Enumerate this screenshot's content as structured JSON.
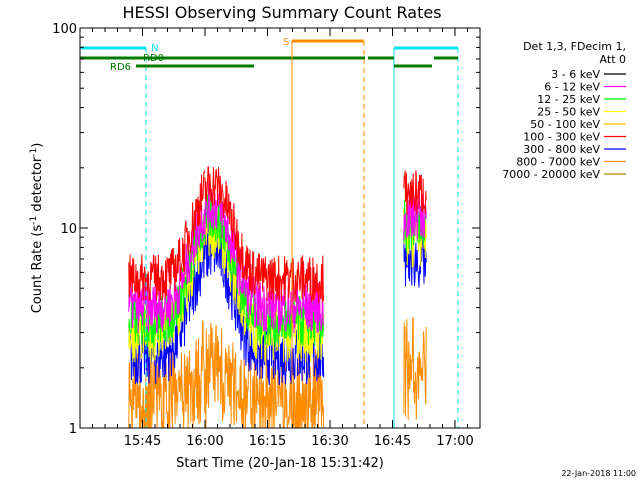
{
  "chart_data": {
    "type": "line",
    "title": "HESSI Observing Summary Count Rates",
    "xlabel": "Start Time (20-Jan-18 15:31:42)",
    "ylabel": "Count Rate (s",
    "ylabel_sup": "-1",
    "ylabel_tail": " detector",
    "ylabel_sup2": "-1",
    "ylabel_close": ")",
    "yscale": "log",
    "ylim": [
      1,
      100
    ],
    "xlim_minutes": [
      15.5,
      17.1
    ],
    "y_ticks": [
      {
        "value": 1,
        "label": "1"
      },
      {
        "value": 10,
        "label": "10"
      },
      {
        "value": 100,
        "label": "100"
      }
    ],
    "x_ticks": [
      {
        "minute": 15.75,
        "label": "15:45"
      },
      {
        "minute": 16.0,
        "label": "16:00"
      },
      {
        "minute": 16.25,
        "label": "16:15"
      },
      {
        "minute": 16.5,
        "label": "16:30"
      },
      {
        "minute": 16.75,
        "label": "16:45"
      },
      {
        "minute": 17.0,
        "label": "17:00"
      }
    ],
    "legend_header": [
      "Det 1,3, FDecim 1,",
      "Att 0"
    ],
    "series": [
      {
        "name": "3 - 6 keV",
        "color": "#000000"
      },
      {
        "name": "6 - 12 keV",
        "color": "#ff00ff"
      },
      {
        "name": "12 - 25 keV",
        "color": "#00ff00"
      },
      {
        "name": "25 - 50 keV",
        "color": "#ffff00"
      },
      {
        "name": "50 - 100 keV",
        "color": "#ffbf00"
      },
      {
        "name": "100 - 300 keV",
        "color": "#ff0000"
      },
      {
        "name": "300 - 800 keV",
        "color": "#0000ff"
      },
      {
        "name": "800 - 7000 keV",
        "color": "#ff8c00"
      },
      {
        "name": "7000 - 20000 keV",
        "color": "#b8860b"
      }
    ],
    "flags": {
      "saa_label": "S",
      "night_label": "N",
      "rd0_label": "RD0",
      "rd6_label": "RD6"
    },
    "timestamp": "22-Jan-2018 11:00"
  }
}
